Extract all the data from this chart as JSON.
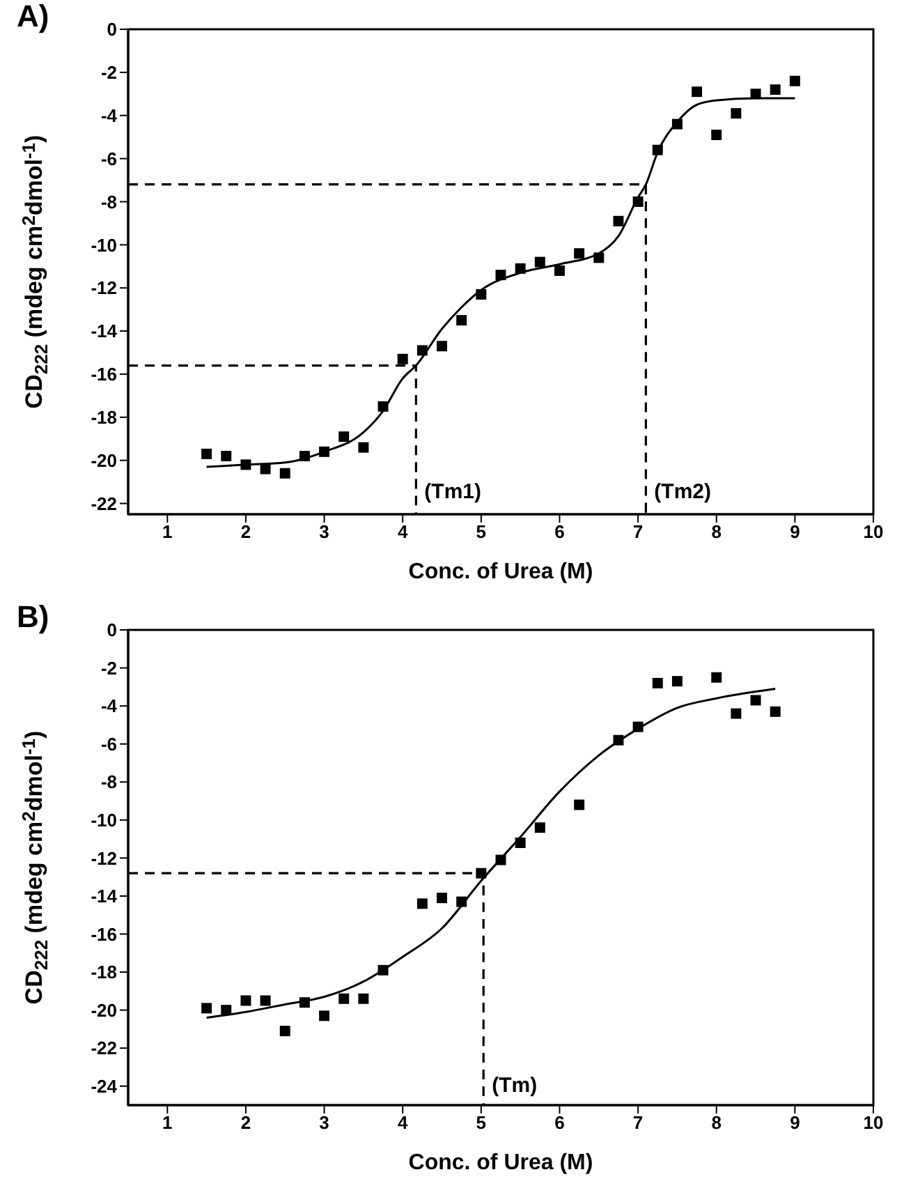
{
  "chart_data": [
    {
      "type": "scatter",
      "title": "A)",
      "xlabel": "Conc. of Urea (M)",
      "ylabel": "CD$_{222}$ (mdeg cm$^{2}$dmol$^{-1}$)",
      "xlim": [
        0.5,
        10
      ],
      "xticks": [
        1,
        2,
        3,
        4,
        5,
        6,
        7,
        8,
        9,
        10
      ],
      "ylim": [
        -22.5,
        0
      ],
      "yticks": [
        0,
        -2,
        -4,
        -6,
        -8,
        -10,
        -12,
        -14,
        -16,
        -18,
        -20,
        -22
      ],
      "series": [
        {
          "type": "scatter",
          "marker": "square",
          "color": "#000000",
          "x": [
            1.5,
            1.75,
            2,
            2.25,
            2.5,
            2.75,
            3,
            3.25,
            3.5,
            3.75,
            4,
            4.25,
            4.5,
            4.75,
            5,
            5.25,
            5.5,
            5.75,
            6,
            6.25,
            6.5,
            6.75,
            7,
            7.25,
            7.5,
            7.75,
            8,
            8.25,
            8.5,
            8.75,
            9
          ],
          "values": [
            -19.7,
            -19.8,
            -20.2,
            -20.4,
            -20.6,
            -19.8,
            -19.6,
            -18.9,
            -19.4,
            -17.5,
            -15.3,
            -14.9,
            -14.7,
            -13.5,
            -12.3,
            -11.4,
            -11.1,
            -10.8,
            -11.2,
            -10.4,
            -10.6,
            -8.9,
            -8.0,
            -5.6,
            -4.4,
            -2.9,
            -4.9,
            -3.9,
            -3.0,
            -2.8,
            -2.4
          ]
        },
        {
          "type": "line",
          "marker": "none",
          "line_style": "solid",
          "color": "#000000",
          "x": [
            1.5,
            2,
            2.5,
            3,
            3.5,
            3.75,
            4,
            4.17,
            4.5,
            4.75,
            5,
            5.5,
            6,
            6.5,
            6.75,
            7,
            7.1,
            7.25,
            7.5,
            7.75,
            8,
            8.5,
            9
          ],
          "values": [
            -20.3,
            -20.2,
            -20.1,
            -19.6,
            -18.7,
            -17.7,
            -16.2,
            -15.6,
            -13.9,
            -12.9,
            -12.1,
            -11.3,
            -10.9,
            -10.4,
            -9.6,
            -7.8,
            -7.2,
            -5.7,
            -4.3,
            -3.5,
            -3.3,
            -3.2,
            -3.2
          ]
        },
        {
          "type": "line",
          "marker": "none",
          "line_style": "dashed",
          "color": "#000000",
          "x": [
            0.5,
            4.17,
            4.17
          ],
          "values": [
            -15.6,
            -15.6,
            -22.5
          ]
        },
        {
          "type": "line",
          "marker": "none",
          "line_style": "dashed",
          "color": "#000000",
          "x": [
            0.5,
            7.1,
            7.1
          ],
          "values": [
            -7.2,
            -7.2,
            -22.5
          ]
        }
      ],
      "annotations": [
        {
          "text": "(Tm1)",
          "x": 4.17,
          "y": -21.4
        },
        {
          "text": "(Tm2)",
          "x": 7.1,
          "y": -21.4
        }
      ]
    },
    {
      "type": "scatter",
      "title": "B)",
      "xlabel": "Conc. of Urea (M)",
      "ylabel": "CD$_{222}$ (mdeg cm$^{2}$dmol$^{-1}$)",
      "xlim": [
        0.5,
        10
      ],
      "xticks": [
        1,
        2,
        3,
        4,
        5,
        6,
        7,
        8,
        9,
        10
      ],
      "ylim": [
        -25,
        0
      ],
      "yticks": [
        0,
        -2,
        -4,
        -6,
        -8,
        -10,
        -12,
        -14,
        -16,
        -18,
        -20,
        -22,
        -24
      ],
      "series": [
        {
          "type": "scatter",
          "marker": "square",
          "color": "#000000",
          "x": [
            1.5,
            1.75,
            2,
            2.25,
            2.5,
            2.75,
            3,
            3.25,
            3.5,
            3.75,
            4.25,
            4.5,
            4.75,
            5,
            5.25,
            5.5,
            5.75,
            6.25,
            6.75,
            7,
            7.25,
            7.5,
            8,
            8.25,
            8.5,
            8.75
          ],
          "values": [
            -19.9,
            -20.0,
            -19.5,
            -19.5,
            -21.1,
            -19.6,
            -20.3,
            -19.4,
            -19.4,
            -17.9,
            -14.4,
            -14.1,
            -14.3,
            -12.8,
            -12.1,
            -11.2,
            -10.4,
            -9.2,
            -5.8,
            -5.1,
            -2.8,
            -2.7,
            -2.5,
            -4.4,
            -3.7,
            -4.3
          ]
        },
        {
          "type": "line",
          "marker": "none",
          "line_style": "solid",
          "color": "#000000",
          "x": [
            1.5,
            2,
            2.5,
            3,
            3.5,
            4,
            4.5,
            5,
            5.5,
            6,
            6.5,
            7,
            7.5,
            8,
            8.75
          ],
          "values": [
            -20.4,
            -20.1,
            -19.7,
            -19.3,
            -18.5,
            -17.2,
            -15.7,
            -13.2,
            -10.9,
            -8.5,
            -6.6,
            -5.2,
            -4.1,
            -3.6,
            -3.1
          ]
        },
        {
          "type": "line",
          "marker": "none",
          "line_style": "dashed",
          "color": "#000000",
          "x": [
            0.5,
            5.03,
            5.03
          ],
          "values": [
            -12.8,
            -12.8,
            -25
          ]
        }
      ],
      "annotations": [
        {
          "text": "(Tm)",
          "x": 5.03,
          "y": -23.9
        }
      ]
    }
  ]
}
